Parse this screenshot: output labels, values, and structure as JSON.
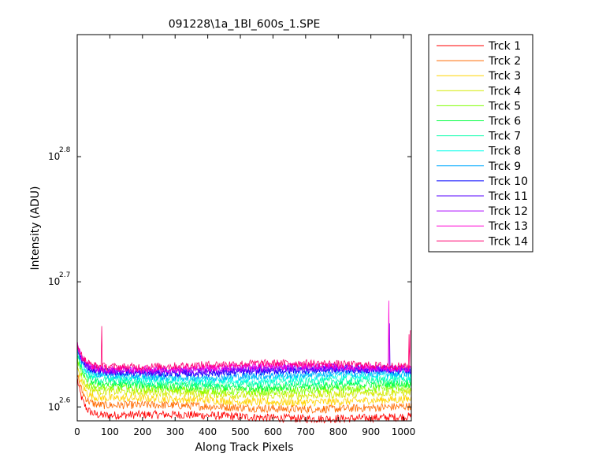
{
  "chart_data": {
    "type": "line",
    "title": "091228\\1a_1Bl_600s_1.SPE",
    "xlabel": "Along Track Pixels",
    "ylabel": "Intensity (ADU)",
    "xlim": [
      0,
      1024
    ],
    "ylim": [
      388,
      790
    ],
    "yscale": "log",
    "grid": false,
    "legend_position": "outside-right",
    "x_ticks": [
      0,
      100,
      200,
      300,
      400,
      500,
      600,
      700,
      800,
      900,
      1000
    ],
    "x_tick_labels": [
      "0",
      "100",
      "200",
      "300",
      "400",
      "500",
      "600",
      "700",
      "800",
      "900",
      "1000"
    ],
    "y_ticks": [
      398.1,
      501.2,
      631.0
    ],
    "y_tick_labels": [
      {
        "base": "10",
        "exp": "2.6"
      },
      {
        "base": "10",
        "exp": "2.7"
      },
      {
        "base": "10",
        "exp": "2.8"
      }
    ],
    "series": [
      {
        "name": "Trck 1",
        "color": "#ff0000",
        "start": 420,
        "plateau": 391,
        "noise": 3.0
      },
      {
        "name": "Trck 2",
        "color": "#ff6a00",
        "start": 424,
        "plateau": 398,
        "noise": 3.0
      },
      {
        "name": "Trck 3",
        "color": "#ffd400",
        "start": 428,
        "plateau": 403,
        "noise": 3.0
      },
      {
        "name": "Trck 4",
        "color": "#d4ea00",
        "start": 431,
        "plateau": 408,
        "noise": 3.0
      },
      {
        "name": "Trck 5",
        "color": "#7fff00",
        "start": 434,
        "plateau": 411,
        "noise": 3.0
      },
      {
        "name": "Trck 6",
        "color": "#00ff40",
        "start": 437,
        "plateau": 414,
        "noise": 3.0
      },
      {
        "name": "Trck 7",
        "color": "#00ffaa",
        "start": 439,
        "plateau": 417,
        "noise": 3.0
      },
      {
        "name": "Trck 8",
        "color": "#00ffea",
        "start": 441,
        "plateau": 420,
        "noise": 3.0
      },
      {
        "name": "Trck 9",
        "color": "#00aaff",
        "start": 443,
        "plateau": 422,
        "noise": 3.0
      },
      {
        "name": "Trck 10",
        "color": "#0000ff",
        "start": 445,
        "plateau": 425,
        "noise": 3.0
      },
      {
        "name": "Trck 11",
        "color": "#5500ff",
        "start": 446,
        "plateau": 426,
        "noise": 3.0
      },
      {
        "name": "Trck 12",
        "color": "#aa00ff",
        "start": 447,
        "plateau": 427,
        "noise": 3.0
      },
      {
        "name": "Trck 13",
        "color": "#ff00d4",
        "start": 448,
        "plateau": 428,
        "noise": 3.0
      },
      {
        "name": "Trck 14",
        "color": "#ff0070",
        "start": 449,
        "plateau": 430,
        "noise": 3.0
      }
    ],
    "spikes": [
      {
        "series": "Trck 14",
        "x": 75,
        "y": 462
      },
      {
        "series": "Trck 13",
        "x": 955,
        "y": 484
      },
      {
        "series": "Trck 11",
        "x": 956,
        "y": 464
      },
      {
        "series": "Trck 14",
        "x": 1017,
        "y": 455
      },
      {
        "series": "Trck 14",
        "x": 1022,
        "y": 458
      }
    ]
  }
}
